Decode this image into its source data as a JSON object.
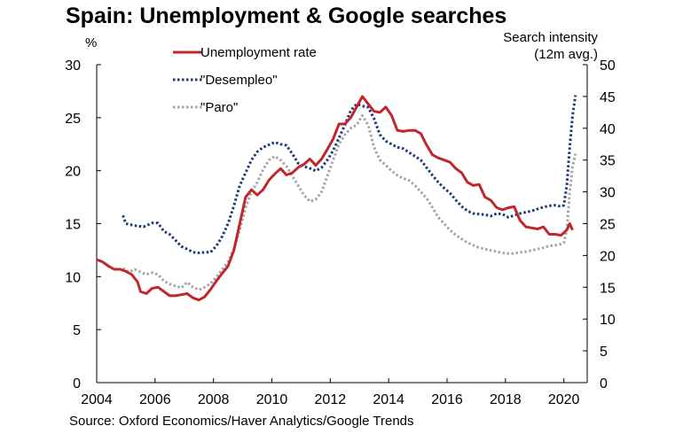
{
  "chart_data": {
    "type": "line",
    "title": "Spain: Unemployment & Google searches",
    "source": "Source: Oxford Economics/Haver Analytics/Google Trends",
    "left_axis": {
      "unit": "%",
      "ylim": [
        0,
        30
      ],
      "ticks": [
        0,
        5,
        10,
        15,
        20,
        25,
        30
      ]
    },
    "right_axis": {
      "label_line1": "Search intensity",
      "label_line2": "(12m avg.)",
      "ylim": [
        0,
        50
      ],
      "ticks": [
        0,
        5,
        10,
        15,
        20,
        25,
        30,
        35,
        40,
        45,
        50
      ]
    },
    "x_axis": {
      "xlim": [
        2004,
        2020.8
      ],
      "ticks": [
        2004,
        2006,
        2008,
        2010,
        2012,
        2014,
        2016,
        2018,
        2020
      ]
    },
    "grid": false,
    "legend_position": "top-left",
    "colors": {
      "unemployment": "#c0272d",
      "desempleo": "#1f3a78",
      "paro": "#a6a6a6"
    },
    "series": [
      {
        "name": "Unemployment rate",
        "axis": "left",
        "style": "solid",
        "points": [
          [
            2004.0,
            11.6
          ],
          [
            2004.2,
            11.4
          ],
          [
            2004.4,
            11.0
          ],
          [
            2004.6,
            10.7
          ],
          [
            2004.8,
            10.7
          ],
          [
            2005.0,
            10.5
          ],
          [
            2005.2,
            10.2
          ],
          [
            2005.4,
            9.5
          ],
          [
            2005.5,
            8.6
          ],
          [
            2005.7,
            8.4
          ],
          [
            2005.9,
            8.9
          ],
          [
            2006.1,
            9.0
          ],
          [
            2006.3,
            8.6
          ],
          [
            2006.5,
            8.2
          ],
          [
            2006.7,
            8.2
          ],
          [
            2006.9,
            8.3
          ],
          [
            2007.1,
            8.4
          ],
          [
            2007.3,
            8.0
          ],
          [
            2007.5,
            7.8
          ],
          [
            2007.7,
            8.1
          ],
          [
            2007.9,
            8.8
          ],
          [
            2008.1,
            9.6
          ],
          [
            2008.3,
            10.3
          ],
          [
            2008.5,
            11.0
          ],
          [
            2008.7,
            12.5
          ],
          [
            2008.9,
            15.0
          ],
          [
            2009.1,
            17.5
          ],
          [
            2009.3,
            18.2
          ],
          [
            2009.5,
            17.7
          ],
          [
            2009.7,
            18.2
          ],
          [
            2009.9,
            19.1
          ],
          [
            2010.1,
            19.7
          ],
          [
            2010.3,
            20.2
          ],
          [
            2010.5,
            19.6
          ],
          [
            2010.7,
            19.8
          ],
          [
            2010.9,
            20.3
          ],
          [
            2011.1,
            20.6
          ],
          [
            2011.3,
            21.1
          ],
          [
            2011.5,
            20.5
          ],
          [
            2011.7,
            21.1
          ],
          [
            2011.9,
            22.0
          ],
          [
            2012.1,
            23.0
          ],
          [
            2012.3,
            24.4
          ],
          [
            2012.5,
            24.4
          ],
          [
            2012.7,
            25.0
          ],
          [
            2012.9,
            26.0
          ],
          [
            2013.1,
            27.0
          ],
          [
            2013.3,
            26.3
          ],
          [
            2013.5,
            25.6
          ],
          [
            2013.7,
            25.5
          ],
          [
            2013.9,
            26.0
          ],
          [
            2014.1,
            25.2
          ],
          [
            2014.3,
            23.8
          ],
          [
            2014.5,
            23.7
          ],
          [
            2014.7,
            23.8
          ],
          [
            2014.9,
            23.8
          ],
          [
            2015.1,
            23.5
          ],
          [
            2015.3,
            22.4
          ],
          [
            2015.5,
            21.5
          ],
          [
            2015.7,
            21.2
          ],
          [
            2015.9,
            21.0
          ],
          [
            2016.1,
            20.8
          ],
          [
            2016.3,
            20.2
          ],
          [
            2016.5,
            19.8
          ],
          [
            2016.7,
            18.9
          ],
          [
            2016.9,
            18.6
          ],
          [
            2017.1,
            18.7
          ],
          [
            2017.3,
            17.5
          ],
          [
            2017.5,
            17.2
          ],
          [
            2017.7,
            16.5
          ],
          [
            2017.9,
            16.3
          ],
          [
            2018.1,
            16.5
          ],
          [
            2018.3,
            16.6
          ],
          [
            2018.5,
            15.3
          ],
          [
            2018.7,
            14.7
          ],
          [
            2018.9,
            14.6
          ],
          [
            2019.1,
            14.5
          ],
          [
            2019.3,
            14.7
          ],
          [
            2019.5,
            14.0
          ],
          [
            2019.7,
            14.0
          ],
          [
            2019.9,
            13.9
          ],
          [
            2020.1,
            14.4
          ],
          [
            2020.2,
            15.0
          ],
          [
            2020.3,
            14.4
          ]
        ]
      },
      {
        "name": "\"Desempleo\"",
        "axis": "right",
        "style": "dotted",
        "points": [
          [
            2004.9,
            26.3
          ],
          [
            2005.0,
            25.0
          ],
          [
            2005.3,
            24.7
          ],
          [
            2005.6,
            24.5
          ],
          [
            2005.9,
            25.1
          ],
          [
            2006.1,
            25.1
          ],
          [
            2006.3,
            23.8
          ],
          [
            2006.5,
            23.3
          ],
          [
            2006.7,
            22.4
          ],
          [
            2006.9,
            21.4
          ],
          [
            2007.1,
            21.0
          ],
          [
            2007.3,
            20.5
          ],
          [
            2007.5,
            20.4
          ],
          [
            2007.7,
            20.5
          ],
          [
            2007.9,
            20.5
          ],
          [
            2008.1,
            21.5
          ],
          [
            2008.3,
            23.0
          ],
          [
            2008.5,
            25.0
          ],
          [
            2008.7,
            27.8
          ],
          [
            2008.9,
            31.0
          ],
          [
            2009.1,
            33.0
          ],
          [
            2009.3,
            35.0
          ],
          [
            2009.5,
            36.3
          ],
          [
            2009.7,
            37.0
          ],
          [
            2009.9,
            37.4
          ],
          [
            2010.1,
            37.8
          ],
          [
            2010.3,
            37.5
          ],
          [
            2010.5,
            37.3
          ],
          [
            2010.7,
            36.0
          ],
          [
            2010.9,
            34.5
          ],
          [
            2011.1,
            34.0
          ],
          [
            2011.3,
            33.7
          ],
          [
            2011.5,
            33.3
          ],
          [
            2011.7,
            33.8
          ],
          [
            2011.9,
            35.0
          ],
          [
            2012.1,
            36.5
          ],
          [
            2012.3,
            38.5
          ],
          [
            2012.5,
            40.5
          ],
          [
            2012.7,
            42.8
          ],
          [
            2012.9,
            43.8
          ],
          [
            2013.1,
            43.5
          ],
          [
            2013.3,
            43.3
          ],
          [
            2013.5,
            41.5
          ],
          [
            2013.7,
            39.0
          ],
          [
            2013.9,
            38.0
          ],
          [
            2014.1,
            37.5
          ],
          [
            2014.3,
            37.0
          ],
          [
            2014.5,
            36.8
          ],
          [
            2014.7,
            36.2
          ],
          [
            2014.9,
            35.6
          ],
          [
            2015.1,
            35.0
          ],
          [
            2015.3,
            33.8
          ],
          [
            2015.5,
            32.6
          ],
          [
            2015.7,
            31.5
          ],
          [
            2015.9,
            30.6
          ],
          [
            2016.1,
            29.8
          ],
          [
            2016.3,
            28.7
          ],
          [
            2016.5,
            27.7
          ],
          [
            2016.7,
            27.0
          ],
          [
            2016.9,
            26.6
          ],
          [
            2017.1,
            26.5
          ],
          [
            2017.3,
            26.4
          ],
          [
            2017.5,
            26.2
          ],
          [
            2017.7,
            26.6
          ],
          [
            2017.9,
            26.5
          ],
          [
            2018.1,
            26.0
          ],
          [
            2018.3,
            26.3
          ],
          [
            2018.5,
            26.6
          ],
          [
            2018.7,
            26.8
          ],
          [
            2018.9,
            27.0
          ],
          [
            2019.1,
            27.3
          ],
          [
            2019.3,
            27.6
          ],
          [
            2019.5,
            27.8
          ],
          [
            2019.7,
            27.9
          ],
          [
            2019.9,
            27.7
          ],
          [
            2020.0,
            27.9
          ],
          [
            2020.1,
            31.0
          ],
          [
            2020.2,
            37.0
          ],
          [
            2020.3,
            42.0
          ],
          [
            2020.4,
            45.2
          ]
        ]
      },
      {
        "name": "\"Paro\"",
        "axis": "right",
        "style": "dotted",
        "points": [
          [
            2004.9,
            18.0
          ],
          [
            2005.1,
            17.4
          ],
          [
            2005.3,
            17.8
          ],
          [
            2005.5,
            17.4
          ],
          [
            2005.7,
            17.0
          ],
          [
            2005.9,
            17.3
          ],
          [
            2006.1,
            17.0
          ],
          [
            2006.3,
            16.0
          ],
          [
            2006.5,
            15.5
          ],
          [
            2006.7,
            15.2
          ],
          [
            2006.9,
            14.9
          ],
          [
            2007.1,
            15.8
          ],
          [
            2007.3,
            15.0
          ],
          [
            2007.5,
            14.6
          ],
          [
            2007.7,
            15.0
          ],
          [
            2007.9,
            15.6
          ],
          [
            2008.1,
            16.6
          ],
          [
            2008.3,
            17.8
          ],
          [
            2008.5,
            19.0
          ],
          [
            2008.7,
            21.0
          ],
          [
            2008.9,
            24.0
          ],
          [
            2009.1,
            27.5
          ],
          [
            2009.3,
            30.0
          ],
          [
            2009.5,
            31.5
          ],
          [
            2009.7,
            33.5
          ],
          [
            2009.9,
            35.0
          ],
          [
            2010.1,
            35.6
          ],
          [
            2010.3,
            35.0
          ],
          [
            2010.5,
            34.0
          ],
          [
            2010.7,
            32.5
          ],
          [
            2010.9,
            31.0
          ],
          [
            2011.1,
            29.5
          ],
          [
            2011.3,
            28.5
          ],
          [
            2011.5,
            28.8
          ],
          [
            2011.7,
            30.0
          ],
          [
            2011.9,
            32.5
          ],
          [
            2012.1,
            35.0
          ],
          [
            2012.3,
            37.5
          ],
          [
            2012.5,
            39.0
          ],
          [
            2012.7,
            40.0
          ],
          [
            2012.9,
            40.5
          ],
          [
            2013.1,
            42.0
          ],
          [
            2013.3,
            40.5
          ],
          [
            2013.5,
            37.0
          ],
          [
            2013.7,
            35.0
          ],
          [
            2013.9,
            34.2
          ],
          [
            2014.1,
            33.3
          ],
          [
            2014.3,
            32.6
          ],
          [
            2014.5,
            32.1
          ],
          [
            2014.7,
            31.8
          ],
          [
            2014.9,
            31.0
          ],
          [
            2015.1,
            30.0
          ],
          [
            2015.3,
            29.0
          ],
          [
            2015.5,
            27.5
          ],
          [
            2015.7,
            26.0
          ],
          [
            2015.9,
            25.0
          ],
          [
            2016.1,
            24.0
          ],
          [
            2016.3,
            23.2
          ],
          [
            2016.5,
            22.6
          ],
          [
            2016.7,
            22.0
          ],
          [
            2016.9,
            21.6
          ],
          [
            2017.1,
            21.2
          ],
          [
            2017.3,
            21.0
          ],
          [
            2017.5,
            20.8
          ],
          [
            2017.7,
            20.6
          ],
          [
            2017.9,
            20.4
          ],
          [
            2018.1,
            20.3
          ],
          [
            2018.3,
            20.3
          ],
          [
            2018.5,
            20.5
          ],
          [
            2018.7,
            20.6
          ],
          [
            2018.9,
            20.8
          ],
          [
            2019.1,
            21.0
          ],
          [
            2019.3,
            21.2
          ],
          [
            2019.5,
            21.5
          ],
          [
            2019.7,
            21.6
          ],
          [
            2019.9,
            21.8
          ],
          [
            2020.0,
            22.0
          ],
          [
            2020.1,
            24.0
          ],
          [
            2020.2,
            30.0
          ],
          [
            2020.3,
            34.0
          ],
          [
            2020.4,
            36.0
          ]
        ]
      }
    ]
  }
}
